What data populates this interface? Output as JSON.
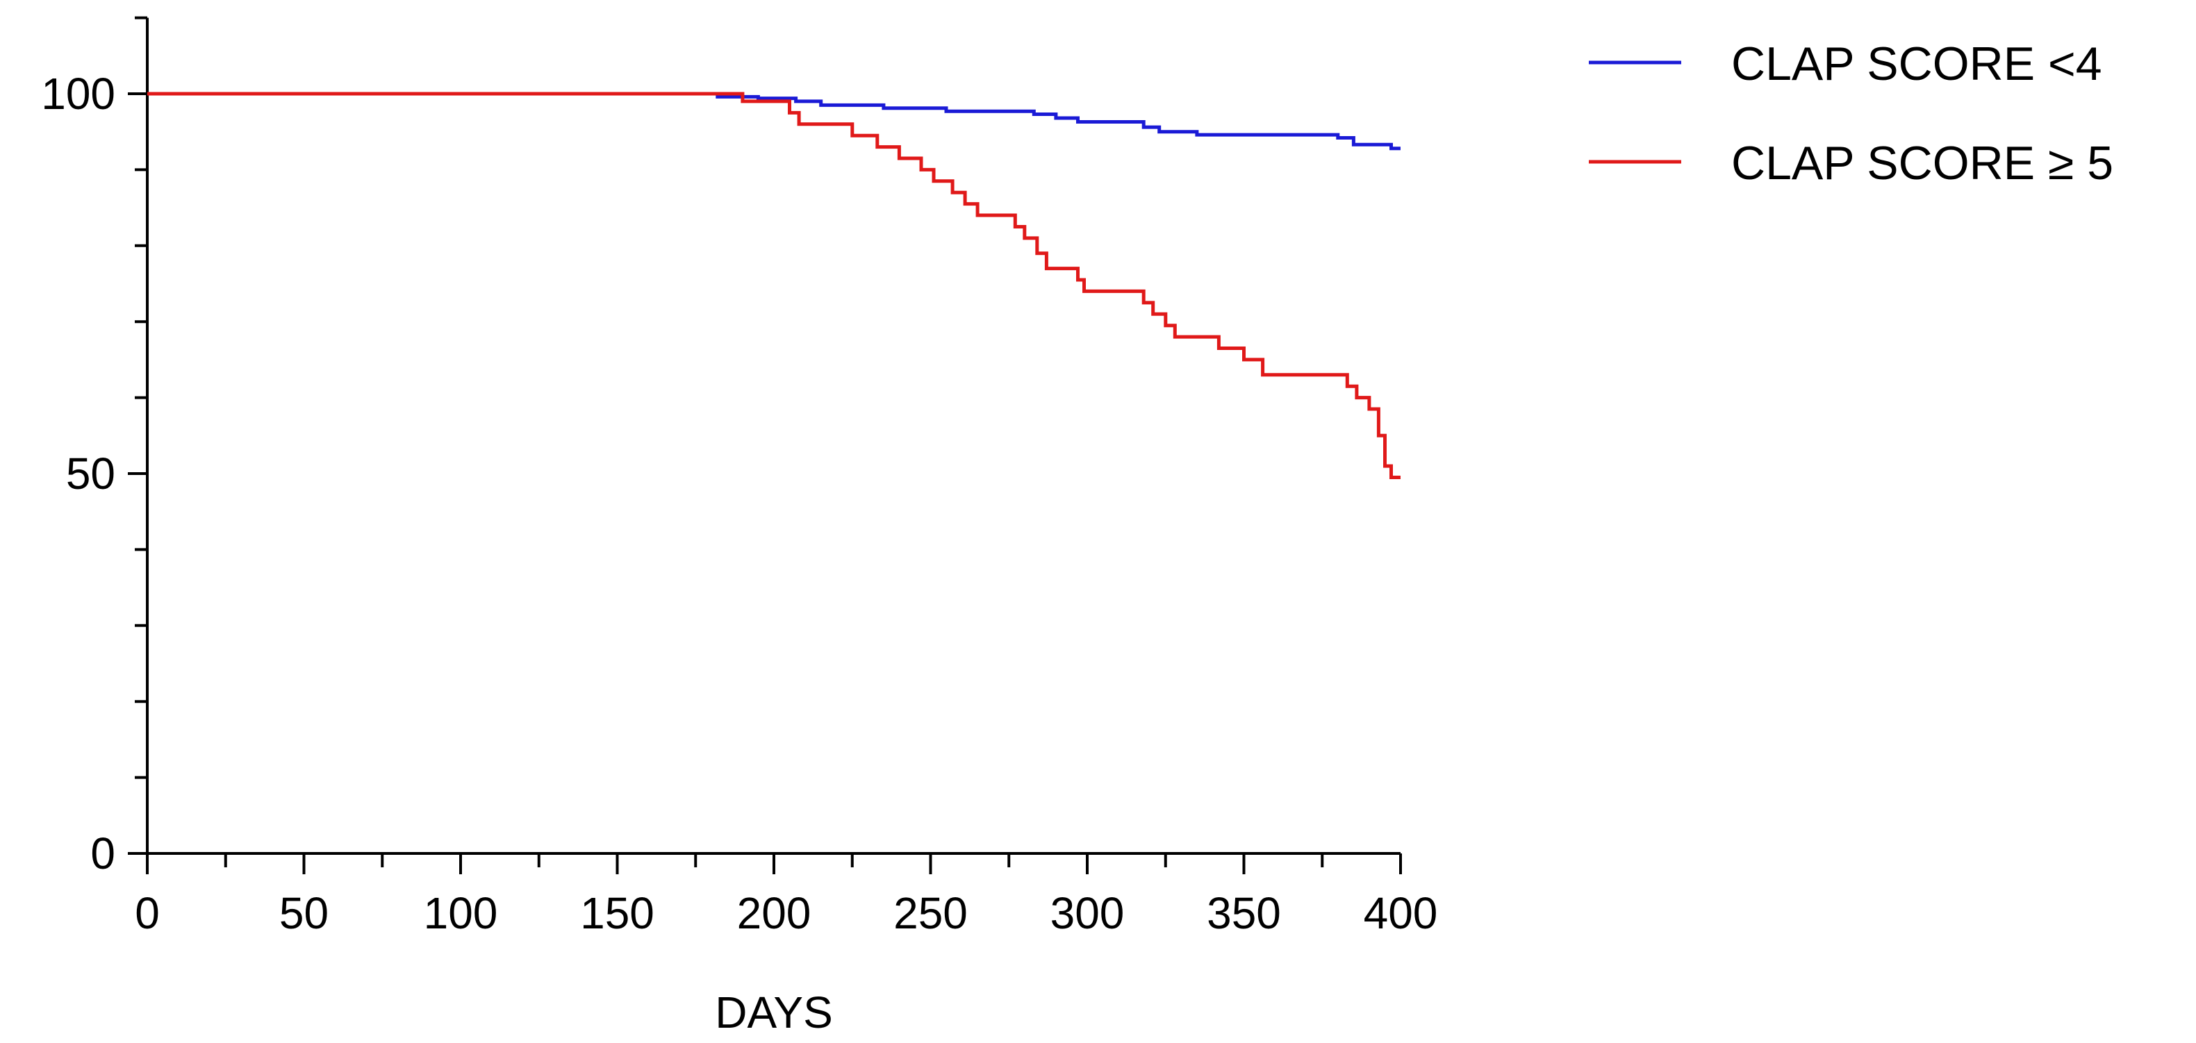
{
  "chart_data": {
    "type": "line",
    "step": true,
    "xlabel": "DAYS",
    "ylabel": "",
    "xlim": [
      0,
      400
    ],
    "ylim": [
      0,
      110
    ],
    "x_major_ticks": [
      0,
      50,
      100,
      150,
      200,
      250,
      300,
      350,
      400
    ],
    "x_minor_step": 25,
    "y_major_ticks": [
      0,
      50,
      100
    ],
    "y_minor_step": 10,
    "grid": false,
    "legend_position": "top-right",
    "series": [
      {
        "name": "CLAP SCORE <4",
        "color": "#1a1ad6",
        "points": [
          [
            0,
            100
          ],
          [
            182,
            100
          ],
          [
            182,
            99.6
          ],
          [
            195,
            99.6
          ],
          [
            195,
            99.4
          ],
          [
            207,
            99.4
          ],
          [
            207,
            99.0
          ],
          [
            215,
            99.0
          ],
          [
            215,
            98.5
          ],
          [
            235,
            98.5
          ],
          [
            235,
            98.1
          ],
          [
            255,
            98.1
          ],
          [
            255,
            97.7
          ],
          [
            283,
            97.7
          ],
          [
            283,
            97.3
          ],
          [
            290,
            97.3
          ],
          [
            290,
            96.8
          ],
          [
            297,
            96.8
          ],
          [
            297,
            96.3
          ],
          [
            318,
            96.3
          ],
          [
            318,
            95.6
          ],
          [
            323,
            95.6
          ],
          [
            323,
            95.0
          ],
          [
            335,
            95.0
          ],
          [
            335,
            94.6
          ],
          [
            380,
            94.6
          ],
          [
            380,
            94.2
          ],
          [
            385,
            94.2
          ],
          [
            385,
            93.3
          ],
          [
            397,
            93.3
          ],
          [
            397,
            92.8
          ],
          [
            400,
            92.8
          ]
        ]
      },
      {
        "name": "CLAP SCORE ≥ 5",
        "color": "#e01919",
        "points": [
          [
            0,
            100
          ],
          [
            190,
            100
          ],
          [
            190,
            99
          ],
          [
            205,
            99
          ],
          [
            205,
            97.5
          ],
          [
            208,
            97.5
          ],
          [
            208,
            96
          ],
          [
            225,
            96
          ],
          [
            225,
            94.5
          ],
          [
            233,
            94.5
          ],
          [
            233,
            93
          ],
          [
            240,
            93
          ],
          [
            240,
            91.5
          ],
          [
            247,
            91.5
          ],
          [
            247,
            90
          ],
          [
            251,
            90
          ],
          [
            251,
            88.5
          ],
          [
            257,
            88.5
          ],
          [
            257,
            87
          ],
          [
            261,
            87
          ],
          [
            261,
            85.5
          ],
          [
            265,
            85.5
          ],
          [
            265,
            84
          ],
          [
            277,
            84
          ],
          [
            277,
            82.5
          ],
          [
            280,
            82.5
          ],
          [
            280,
            81
          ],
          [
            284,
            81
          ],
          [
            284,
            79
          ],
          [
            287,
            79
          ],
          [
            287,
            77
          ],
          [
            297,
            77
          ],
          [
            297,
            75.5
          ],
          [
            299,
            75.5
          ],
          [
            299,
            74
          ],
          [
            318,
            74
          ],
          [
            318,
            72.5
          ],
          [
            321,
            72.5
          ],
          [
            321,
            71
          ],
          [
            325,
            71
          ],
          [
            325,
            69.5
          ],
          [
            328,
            69.5
          ],
          [
            328,
            68
          ],
          [
            342,
            68
          ],
          [
            342,
            66.5
          ],
          [
            350,
            66.5
          ],
          [
            350,
            65
          ],
          [
            356,
            65
          ],
          [
            356,
            63
          ],
          [
            383,
            63
          ],
          [
            383,
            61.5
          ],
          [
            386,
            61.5
          ],
          [
            386,
            60
          ],
          [
            390,
            60
          ],
          [
            390,
            58.5
          ],
          [
            393,
            58.5
          ],
          [
            393,
            55
          ],
          [
            395,
            55
          ],
          [
            395,
            51
          ],
          [
            397,
            51
          ],
          [
            397,
            49.5
          ],
          [
            400,
            49.5
          ]
        ]
      }
    ]
  }
}
